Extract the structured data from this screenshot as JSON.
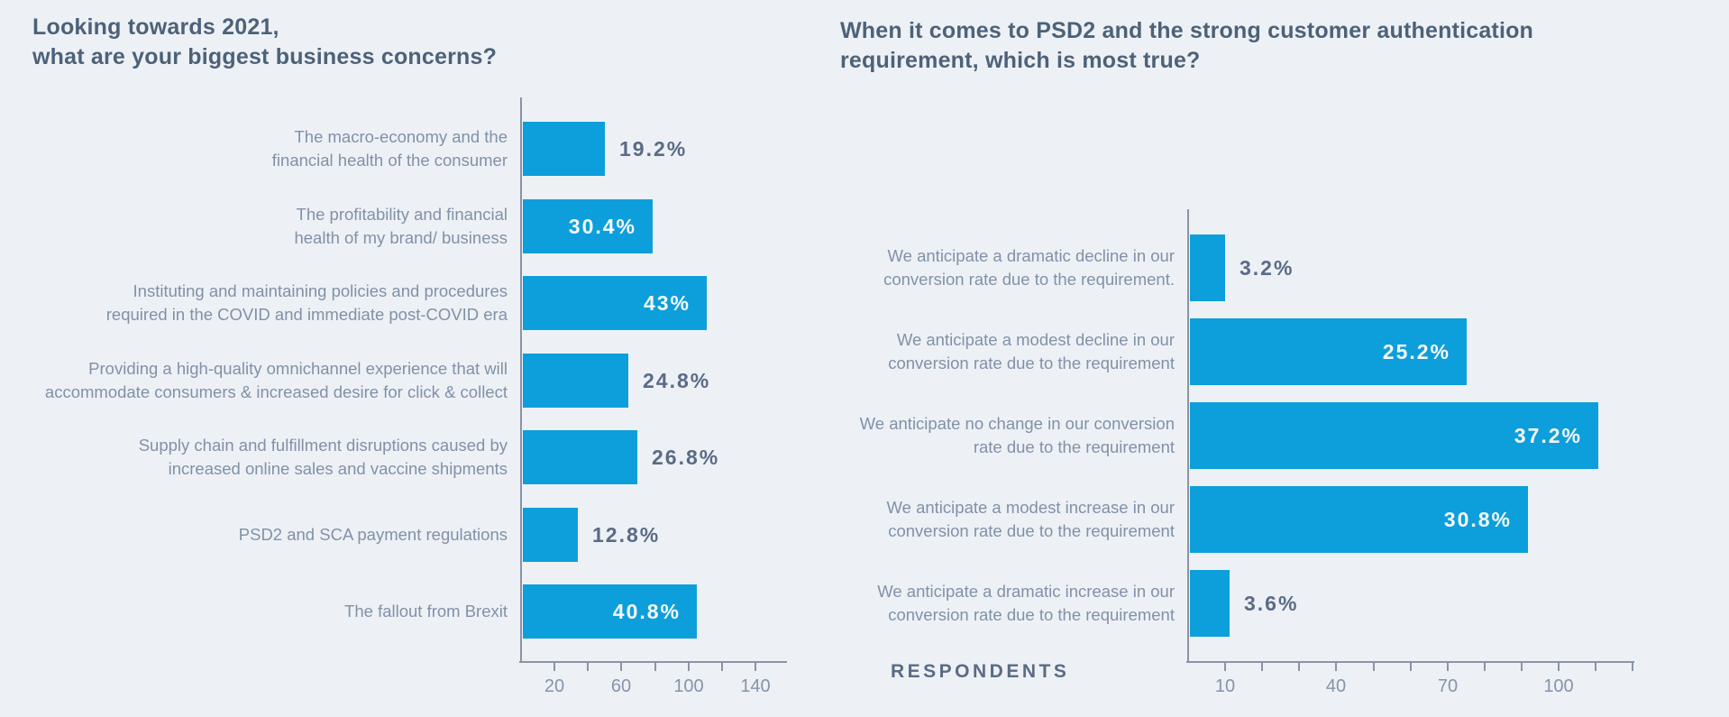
{
  "colors": {
    "background": "#edf1f6",
    "bar": "#0d9fdb",
    "title": "#4d6279",
    "label": "#8191a7",
    "value_outside": "#5a6b85",
    "value_inside": "#f4f9fc",
    "axis": "#8a94a5",
    "ticklabel": "#8494aa"
  },
  "chart_data": [
    {
      "type": "bar",
      "orientation": "horizontal",
      "title": "Looking towards 2021,\nwhat are your biggest business concerns?",
      "grid": false,
      "legend": "none",
      "value_unit": "percent of respondents (x-axis in respondent counts)",
      "bars": [
        {
          "label": "The macro-economy and the\nfinancial health of the consumer",
          "value_pct": 19.2,
          "value_label": "19.2%",
          "label_inside": false
        },
        {
          "label": "The profitability and financial\nhealth of my brand/ business",
          "value_pct": 30.4,
          "value_label": "30.4%",
          "label_inside": true
        },
        {
          "label": "Instituting and maintaining policies and procedures\nrequired in the COVID and immediate post-COVID era",
          "value_pct": 43,
          "value_label": "43%",
          "label_inside": true
        },
        {
          "label": "Providing a high-quality omnichannel experience that will\naccommodate consumers & increased desire for click & collect",
          "value_pct": 24.8,
          "value_label": "24.8%",
          "label_inside": false
        },
        {
          "label": "Supply chain and fulfillment disruptions caused by\nincreased online sales and vaccine shipments",
          "value_pct": 26.8,
          "value_label": "26.8%",
          "label_inside": false
        },
        {
          "label": "PSD2 and SCA payment regulations",
          "value_pct": 12.8,
          "value_label": "12.8%",
          "label_inside": false
        },
        {
          "label": "The fallout from Brexit",
          "value_pct": 40.8,
          "value_label": "40.8%",
          "label_inside": true
        }
      ],
      "axis": {
        "range_units": [
          0,
          160
        ],
        "implied_total_respondents": 255,
        "ticks": [
          {
            "value": 20,
            "label": "20"
          },
          {
            "value": 40,
            "label": ""
          },
          {
            "value": 60,
            "label": "60"
          },
          {
            "value": 80,
            "label": ""
          },
          {
            "value": 100,
            "label": "100"
          },
          {
            "value": 120,
            "label": ""
          },
          {
            "value": 140,
            "label": "140"
          }
        ]
      }
    },
    {
      "type": "bar",
      "orientation": "horizontal",
      "title": "When it comes to PSD2 and the strong customer authentication\nrequirement, which is most true?",
      "grid": false,
      "legend": "none",
      "x_axis_caption": "RESPONDENTS",
      "value_unit": "percent of respondents (x-axis in respondent counts)",
      "bars": [
        {
          "label": "We anticipate a dramatic decline in our\nconversion rate due to the requirement.",
          "value_pct": 3.2,
          "value_label": "3.2%",
          "label_inside": false
        },
        {
          "label": "We anticipate a modest decline in our\nconversion rate due to the requirement",
          "value_pct": 25.2,
          "value_label": "25.2%",
          "label_inside": true
        },
        {
          "label": "We anticipate no change in our conversion\nrate due to the requirement",
          "value_pct": 37.2,
          "value_label": "37.2%",
          "label_inside": true
        },
        {
          "label": "We anticipate a modest increase in our\nconversion rate due to the requirement",
          "value_pct": 30.8,
          "value_label": "30.8%",
          "label_inside": true
        },
        {
          "label": "We anticipate a dramatic increase in our\nconversion rate due to the requirement",
          "value_pct": 3.6,
          "value_label": "3.6%",
          "label_inside": false
        }
      ],
      "axis": {
        "range_units": [
          0,
          120
        ],
        "implied_total_respondents": 296,
        "ticks": [
          {
            "value": 10,
            "label": "10"
          },
          {
            "value": 20,
            "label": ""
          },
          {
            "value": 30,
            "label": ""
          },
          {
            "value": 40,
            "label": "40"
          },
          {
            "value": 50,
            "label": ""
          },
          {
            "value": 60,
            "label": ""
          },
          {
            "value": 70,
            "label": "70"
          },
          {
            "value": 80,
            "label": ""
          },
          {
            "value": 90,
            "label": ""
          },
          {
            "value": 100,
            "label": "100"
          },
          {
            "value": 110,
            "label": ""
          },
          {
            "value": 120,
            "label": ""
          }
        ]
      }
    }
  ]
}
